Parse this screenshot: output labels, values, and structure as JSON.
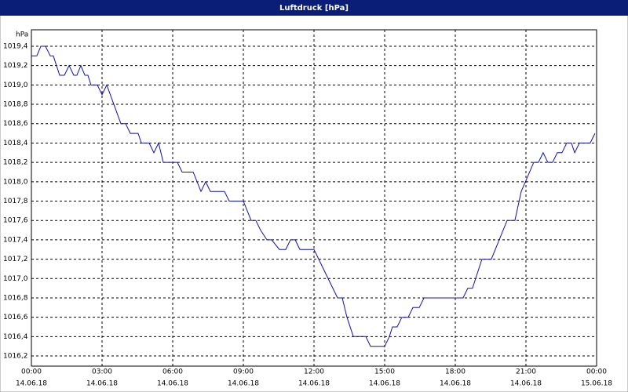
{
  "window_title": "Luftdruck [hPa]",
  "chart_data": {
    "type": "line",
    "y_unit": "hPa",
    "x": [
      0,
      0.23,
      0.4,
      0.6,
      0.8,
      0.93,
      1.2,
      1.4,
      1.6,
      1.8,
      1.93,
      2.1,
      2.27,
      2.4,
      2.53,
      2.8,
      3.0,
      3.2,
      3.8,
      4.0,
      4.2,
      4.53,
      4.67,
      5.0,
      5.2,
      5.4,
      5.6,
      6.2,
      6.4,
      6.87,
      7.2,
      7.4,
      7.6,
      8.2,
      8.4,
      9.0,
      9.33,
      9.53,
      9.73,
      10.0,
      10.2,
      10.53,
      10.8,
      11.0,
      11.2,
      11.4,
      12.0,
      12.2,
      13.0,
      13.2,
      13.4,
      13.67,
      14.2,
      14.4,
      15.0,
      15.2,
      15.33,
      15.53,
      15.73,
      16.0,
      16.2,
      16.47,
      16.67,
      18.33,
      18.53,
      18.73,
      19.13,
      19.53,
      20.2,
      20.53,
      20.8,
      21.33,
      21.53,
      21.73,
      21.93,
      22.13,
      22.33,
      22.53,
      22.73,
      22.93,
      23.07,
      23.27,
      23.73,
      23.93
    ],
    "series": [
      {
        "name": "Luftdruck",
        "color": "#1010a8",
        "values": [
          1019.3,
          1019.3,
          1019.4,
          1019.4,
          1019.3,
          1019.3,
          1019.1,
          1019.1,
          1019.2,
          1019.1,
          1019.1,
          1019.2,
          1019.1,
          1019.1,
          1019.0,
          1019.0,
          1018.9,
          1019.0,
          1018.6,
          1018.6,
          1018.5,
          1018.5,
          1018.4,
          1018.4,
          1018.3,
          1018.4,
          1018.2,
          1018.2,
          1018.1,
          1018.1,
          1017.9,
          1018.0,
          1017.9,
          1017.9,
          1017.8,
          1017.8,
          1017.6,
          1017.6,
          1017.5,
          1017.4,
          1017.4,
          1017.3,
          1017.3,
          1017.4,
          1017.4,
          1017.3,
          1017.3,
          1017.2,
          1016.8,
          1016.8,
          1016.6,
          1016.4,
          1016.4,
          1016.3,
          1016.3,
          1016.4,
          1016.5,
          1016.5,
          1016.6,
          1016.6,
          1016.7,
          1016.7,
          1016.8,
          1016.8,
          1016.9,
          1016.9,
          1017.2,
          1017.2,
          1017.6,
          1017.6,
          1017.9,
          1018.2,
          1018.2,
          1018.3,
          1018.2,
          1018.2,
          1018.3,
          1018.3,
          1018.4,
          1018.4,
          1018.3,
          1018.4,
          1018.4,
          1018.5
        ]
      }
    ],
    "xlim": [
      0,
      24
    ],
    "xticks": [
      {
        "value": 0,
        "label": "00:00",
        "sublabel": "14.06.18"
      },
      {
        "value": 3,
        "label": "03:00",
        "sublabel": "14.06.18"
      },
      {
        "value": 6,
        "label": "06:00",
        "sublabel": "14.06.18"
      },
      {
        "value": 9,
        "label": "09:00",
        "sublabel": "14.06.18"
      },
      {
        "value": 12,
        "label": "12:00",
        "sublabel": "14.06.18"
      },
      {
        "value": 15,
        "label": "15:00",
        "sublabel": "14.06.18"
      },
      {
        "value": 18,
        "label": "18:00",
        "sublabel": "14.06.18"
      },
      {
        "value": 21,
        "label": "21:00",
        "sublabel": "14.06.18"
      },
      {
        "value": 24,
        "label": "00:00",
        "sublabel": "15.06.18"
      }
    ],
    "ylim": [
      1016.095,
      1019.57
    ],
    "yticks": [
      {
        "value": 1016.2,
        "label": "1016,2"
      },
      {
        "value": 1016.4,
        "label": "1016,4"
      },
      {
        "value": 1016.6,
        "label": "1016,6"
      },
      {
        "value": 1016.8,
        "label": "1016,8"
      },
      {
        "value": 1017.0,
        "label": "1017,0"
      },
      {
        "value": 1017.2,
        "label": "1017,2"
      },
      {
        "value": 1017.4,
        "label": "1017,4"
      },
      {
        "value": 1017.6,
        "label": "1017,6"
      },
      {
        "value": 1017.8,
        "label": "1017,8"
      },
      {
        "value": 1018.0,
        "label": "1018,0"
      },
      {
        "value": 1018.2,
        "label": "1018,2"
      },
      {
        "value": 1018.4,
        "label": "1018,4"
      },
      {
        "value": 1018.6,
        "label": "1018,6"
      },
      {
        "value": 1018.8,
        "label": "1018,8"
      },
      {
        "value": 1019.0,
        "label": "1019,0"
      },
      {
        "value": 1019.2,
        "label": "1019,2"
      },
      {
        "value": 1019.4,
        "label": "1019,4"
      }
    ],
    "grid": true
  }
}
